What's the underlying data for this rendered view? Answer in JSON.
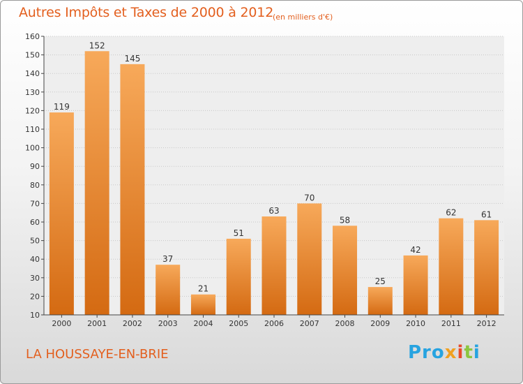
{
  "chart_data": {
    "type": "bar",
    "title": "Autres Impôts et Taxes de 2000 à 2012",
    "subtitle": "(en milliers d'€)",
    "categories": [
      "2000",
      "2001",
      "2002",
      "2003",
      "2004",
      "2005",
      "2006",
      "2007",
      "2008",
      "2009",
      "2010",
      "2011",
      "2012"
    ],
    "values": [
      119,
      152,
      145,
      37,
      21,
      51,
      63,
      70,
      58,
      25,
      42,
      62,
      61
    ],
    "ylim": [
      10,
      160
    ],
    "yticks": [
      10,
      20,
      30,
      40,
      50,
      60,
      70,
      80,
      90,
      100,
      110,
      120,
      130,
      140,
      150,
      160
    ],
    "grid": true,
    "bar_color": "#f39a3c"
  },
  "location": "LA HOUSSAYE-EN-BRIE",
  "logo": {
    "p1": "Pro",
    "p2": "x",
    "p3": "i",
    "p4": "t",
    "p5": "i"
  }
}
